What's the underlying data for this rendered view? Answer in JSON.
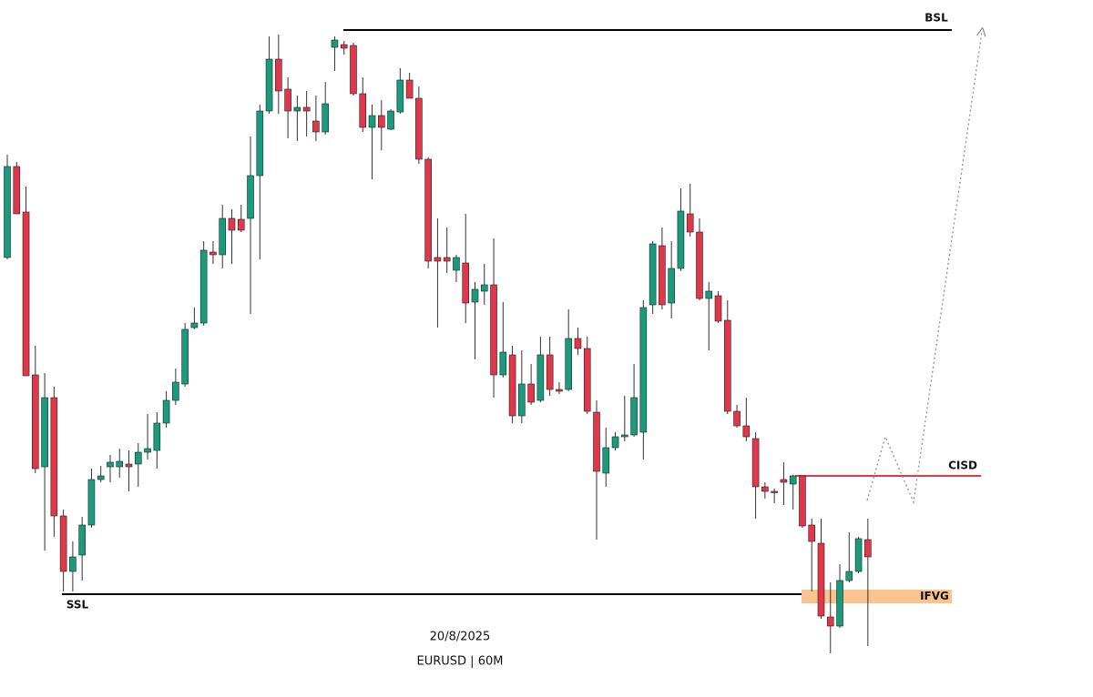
{
  "chart_data": {
    "type": "candlestick",
    "date": "20/8/2025",
    "subtitle": "EURUSD | 60M",
    "up_color": "#1a9b7c",
    "down_color": "#e0374a",
    "ylim": [
      0,
      762
    ],
    "open": [
      479,
      579,
      529,
      350,
      249,
      325,
      195,
      134,
      152,
      185,
      235,
      249,
      249,
      252,
      252,
      265,
      267,
      297,
      322,
      340,
      402,
      407,
      485,
      482,
      522,
      521,
      522,
      569,
      640,
      697,
      664,
      640,
      644,
      629,
      617,
      710,
      713,
      712,
      659,
      622,
      635,
      620,
      639,
      674,
      654,
      587,
      479,
      479,
      465,
      473,
      430,
      442,
      449,
      350,
      372,
      305,
      340,
      322,
      372,
      334,
      334,
      390,
      379,
      309,
      242,
      270,
      282,
      284,
      287,
      427,
      492,
      429,
      467,
      527,
      507,
      434,
      437,
      410,
      310,
      294,
      280,
      227,
      222,
      235,
      230,
      239,
      185,
      165,
      84,
      74,
      124,
      134,
      169
    ],
    "high": [
      592,
      584,
      557,
      382,
      352,
      337,
      202,
      167,
      194,
      247,
      250,
      262,
      269,
      267,
      275,
      307,
      309,
      332,
      357,
      407,
      424,
      497,
      497,
      537,
      532,
      537,
      612,
      647,
      722,
      724,
      677,
      657,
      662,
      657,
      672,
      722,
      717,
      715,
      677,
      647,
      652,
      642,
      687,
      682,
      667,
      589,
      522,
      512,
      482,
      527,
      452,
      472,
      500,
      430,
      382,
      377,
      362,
      392,
      392,
      342,
      422,
      402,
      392,
      322,
      292,
      287,
      327,
      362,
      432,
      497,
      512,
      497,
      555,
      560,
      522,
      452,
      442,
      432,
      317,
      325,
      287,
      232,
      225,
      254,
      240,
      239,
      192,
      192,
      122,
      142,
      177,
      172,
      192
    ],
    "low": [
      477,
      527,
      349,
      242,
      157,
      172,
      112,
      112,
      124,
      182,
      232,
      232,
      237,
      222,
      227,
      257,
      247,
      292,
      317,
      337,
      400,
      404,
      472,
      467,
      472,
      507,
      417,
      477,
      637,
      637,
      610,
      607,
      612,
      607,
      614,
      684,
      702,
      657,
      617,
      565,
      597,
      619,
      637,
      654,
      582,
      467,
      402,
      462,
      452,
      407,
      367,
      427,
      325,
      347,
      297,
      297,
      317,
      320,
      327,
      329,
      332,
      372,
      307,
      169,
      227,
      267,
      277,
      282,
      257,
      417,
      422,
      412,
      464,
      502,
      432,
      377,
      407,
      307,
      292,
      277,
      192,
      214,
      209,
      207,
      202,
      182,
      112,
      82,
      44,
      72,
      122,
      132,
      52
    ],
    "close": [
      579,
      527,
      349,
      247,
      325,
      195,
      134,
      150,
      185,
      235,
      239,
      254,
      255,
      249,
      265,
      269,
      297,
      322,
      342,
      400,
      407,
      487,
      482,
      522,
      509,
      509,
      569,
      640,
      697,
      662,
      640,
      644,
      640,
      617,
      648,
      718,
      709,
      659,
      622,
      635,
      622,
      640,
      674,
      654,
      587,
      475,
      475,
      475,
      479,
      429,
      444,
      449,
      350,
      375,
      305,
      340,
      320,
      372,
      334,
      332,
      390,
      379,
      310,
      244,
      270,
      282,
      284,
      325,
      424,
      494,
      427,
      467,
      530,
      507,
      434,
      442,
      409,
      310,
      294,
      282,
      227,
      222,
      221,
      232,
      239,
      184,
      167,
      85,
      74,
      124,
      134,
      170,
      150
    ],
    "levels": [
      {
        "label": "BSL",
        "value": 729,
        "color": "#000000"
      },
      {
        "label": "SSL",
        "value": 109,
        "color": "#000000"
      },
      {
        "label": "CISD",
        "value": 239,
        "color": "#e0374a"
      }
    ],
    "zones": [
      {
        "label": "IFVG",
        "range": [
          99,
          114
        ],
        "color": "#f9c48f"
      }
    ]
  }
}
